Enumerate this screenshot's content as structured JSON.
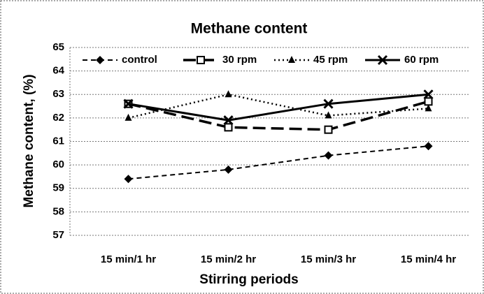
{
  "chart_data": {
    "type": "line",
    "title": "Methane content",
    "x_label": "Stirring periods",
    "y_label": "Methane content, (%)",
    "categories": [
      "15 min/1 hr",
      "15 min/2 hr",
      "15 min/3 hr",
      "15 min/4 hr"
    ],
    "series": [
      {
        "name": "control",
        "color": "#000000",
        "dash": "7,5",
        "width": 2,
        "marker": "diamond",
        "values": [
          59.4,
          59.8,
          60.4,
          60.8
        ]
      },
      {
        "name": "30 rpm",
        "color": "#000000",
        "dash": "18,8",
        "width": 3.5,
        "marker": "square",
        "values": [
          62.6,
          61.6,
          61.5,
          62.7
        ]
      },
      {
        "name": "45 rpm",
        "color": "#000000",
        "dash": "2,4",
        "width": 2.5,
        "marker": "triangle",
        "values": [
          62.0,
          63.0,
          62.1,
          62.4
        ]
      },
      {
        "name": "60 rpm",
        "color": "#000000",
        "dash": "none",
        "width": 3,
        "marker": "x",
        "values": [
          62.6,
          61.9,
          62.6,
          63.0
        ]
      }
    ],
    "ylim": [
      57,
      65
    ],
    "yticks": [
      57,
      58,
      59,
      60,
      61,
      62,
      63,
      64,
      65
    ],
    "grid": true,
    "legend": "top"
  }
}
